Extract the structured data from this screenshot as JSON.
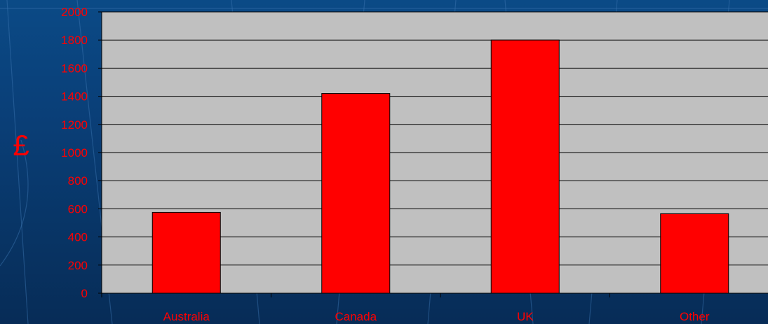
{
  "chart_data": {
    "type": "bar",
    "title": "",
    "xlabel": "",
    "ylabel": "£",
    "categories": [
      "Australia",
      "Canada",
      "UK",
      "Other"
    ],
    "values": [
      575,
      1420,
      1800,
      565
    ],
    "ylim": [
      0,
      2000
    ],
    "yticks": [
      0,
      200,
      400,
      600,
      800,
      1000,
      1200,
      1400,
      1600,
      1800,
      2000
    ],
    "grid": true,
    "legend": "none",
    "colors": {
      "bar": "#ff0000",
      "bar_stroke": "#000000",
      "plot_background": "#c0c0c0",
      "gridline": "#000000",
      "text": "#ff0000"
    }
  }
}
